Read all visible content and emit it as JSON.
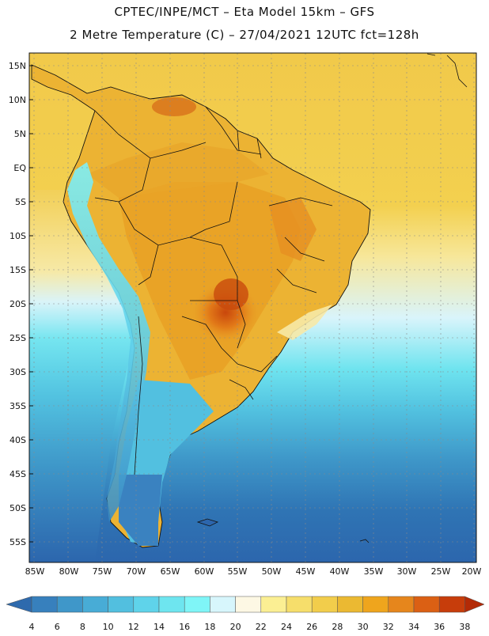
{
  "title_line1": "CPTEC/INPE/MCT –  Eta Model 15km – GFS",
  "title_line2": "2 Metre Temperature (C) – 27/04/2021 12UTC fct=128h",
  "map": {
    "lat_labels": [
      "15N",
      "10N",
      "5N",
      "EQ",
      "5S",
      "10S",
      "15S",
      "20S",
      "25S",
      "30S",
      "35S",
      "40S",
      "45S",
      "50S",
      "55S"
    ],
    "lon_labels": [
      "85W",
      "80W",
      "75W",
      "70W",
      "65W",
      "60W",
      "55W",
      "50W",
      "45W",
      "40W",
      "35W",
      "30W",
      "25W",
      "20W"
    ],
    "background_ocean_north": "#f1cd46",
    "background_ocean_south": "#2c6db3"
  },
  "colorbar": {
    "labels": [
      "4",
      "6",
      "8",
      "10",
      "12",
      "14",
      "16",
      "18",
      "20",
      "22",
      "24",
      "26",
      "28",
      "30",
      "32",
      "34",
      "36",
      "38"
    ],
    "colors": [
      "#2e6aad",
      "#3780bd",
      "#3f97c9",
      "#48acd6",
      "#52bfdf",
      "#5fd3ea",
      "#6ee5ef",
      "#7ff5f7",
      "#d7f6fc",
      "#fdf8e4",
      "#fbef93",
      "#f6de6b",
      "#f2cd4b",
      "#ebb932",
      "#efa51d",
      "#e6861c",
      "#db6014",
      "#c73d0b",
      "#b32a06"
    ]
  }
}
